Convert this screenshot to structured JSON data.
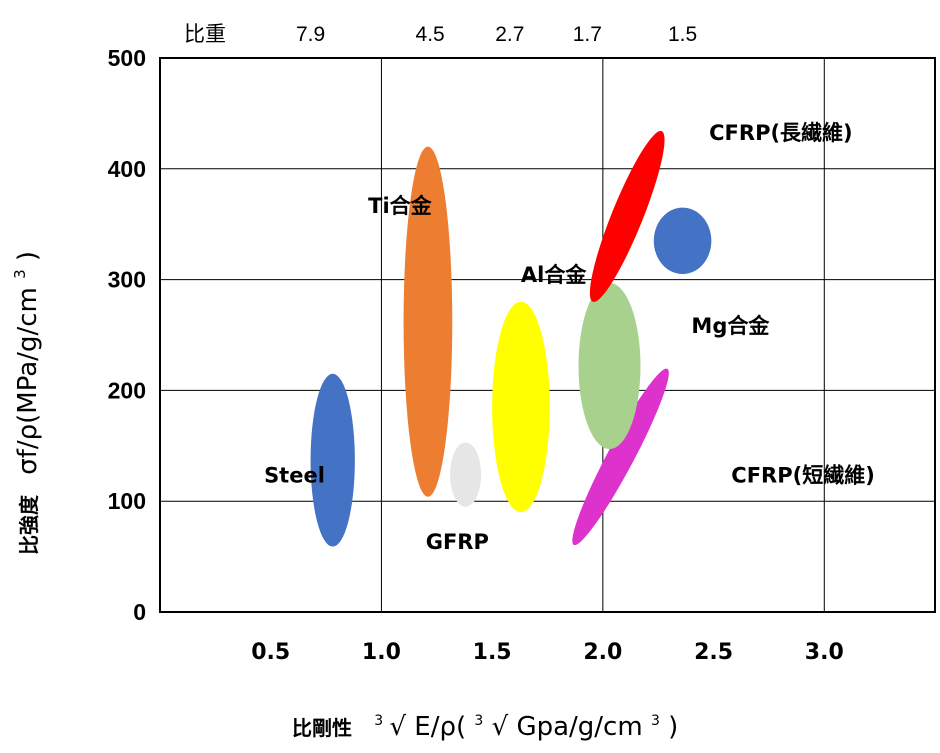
{
  "chart_data": {
    "type": "scatter",
    "title": "",
    "top_axis": {
      "label": "比重",
      "ticks": [
        {
          "x": 0.68,
          "label": "7.9"
        },
        {
          "x": 1.22,
          "label": "4.5"
        },
        {
          "x": 1.58,
          "label": "2.7"
        },
        {
          "x": 1.93,
          "label": "1.7"
        },
        {
          "x": 2.36,
          "label": "1.5"
        }
      ]
    },
    "xaxis": {
      "label_prefix": "比剛性",
      "label_formula": "E/ρ(",
      "label_unit": "Gpa/g/cm",
      "label_suffix": ")",
      "superscript": "3",
      "root": "√",
      "ticks": [
        "0.5",
        "1.0",
        "1.5",
        "2.0",
        "2.5",
        "3.0"
      ],
      "tick_values": [
        0.5,
        1.0,
        1.5,
        2.0,
        2.5,
        3.0
      ],
      "range": [
        0.0,
        3.5
      ]
    },
    "yaxis": {
      "label_prefix": "比強度",
      "label_formula": "σf/ρ(MPa/g/cm",
      "label_suffix": ")",
      "superscript": "3",
      "ticks": [
        "0",
        "100",
        "200",
        "300",
        "400",
        "500"
      ],
      "tick_values": [
        0,
        100,
        200,
        300,
        400,
        500
      ],
      "range": [
        0,
        500
      ]
    },
    "grid": true,
    "regions": [
      {
        "label": "Steel",
        "color": "#4472c4",
        "shape": "ellipse",
        "cx": 0.78,
        "cy": 137,
        "rx": 0.1,
        "ry": 78,
        "rotation": 0,
        "label_x": 0.47,
        "label_y": 117
      },
      {
        "label": "Ti合金",
        "color": "#ed7d31",
        "shape": "ellipse",
        "cx": 1.21,
        "cy": 262,
        "rx": 0.11,
        "ry": 158,
        "rotation": 0,
        "label_x": 0.94,
        "label_y": 360
      },
      {
        "label": "GFRP",
        "color": "#e7e6e6",
        "shape": "circle",
        "cx": 1.38,
        "cy": 124,
        "rx": 0.07,
        "ry": 29,
        "rotation": 0,
        "label_x": 1.2,
        "label_y": 57
      },
      {
        "label": "Al合金",
        "color": "#ffff00",
        "shape": "ellipse",
        "cx": 1.63,
        "cy": 185,
        "rx": 0.13,
        "ry": 95,
        "rotation": 0,
        "label_x": 1.63,
        "label_y": 298
      },
      {
        "label": "CFRP(短繊維)",
        "color": "#dd33cc",
        "shape": "ellipse",
        "cx": 2.08,
        "cy": 140,
        "rx": 0.06,
        "ry": 90,
        "rotation": 28,
        "label_x": 2.58,
        "label_y": 117
      },
      {
        "label": "Mg合金",
        "color": "#a9d18e",
        "shape": "ellipse",
        "cx": 2.03,
        "cy": 222,
        "rx": 0.14,
        "ry": 75,
        "rotation": 0,
        "label_x": 2.4,
        "label_y": 252
      },
      {
        "label": "CFRP(長繊維)",
        "color": "#ff0000",
        "shape": "ellipse",
        "cx": 2.11,
        "cy": 357,
        "rx": 0.07,
        "ry": 83,
        "rotation": 22,
        "label_x": 2.48,
        "label_y": 426
      },
      {
        "label": "",
        "color": "#4472c4",
        "shape": "circle",
        "cx": 2.36,
        "cy": 335,
        "rx": 0.13,
        "ry": 30,
        "rotation": 0
      }
    ]
  }
}
